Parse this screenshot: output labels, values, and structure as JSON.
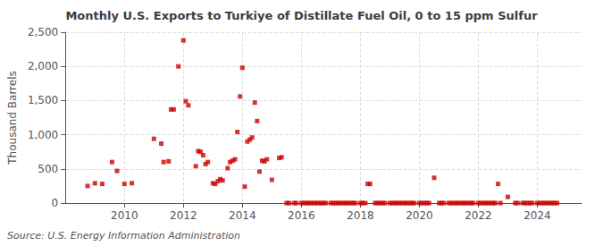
{
  "chart_data": {
    "type": "scatter",
    "title": "Monthly U.S. Exports to Turkiye of Distillate Fuel Oil, 0 to 15 ppm Sulfur",
    "ylabel": "Thousand Barrels",
    "source": "Source: U.S. Energy Information Administration",
    "color": "#cc0000",
    "marker": "square",
    "grid": true,
    "xlim": [
      2008.0,
      2025.5
    ],
    "xticks": [
      2010,
      2012,
      2014,
      2016,
      2018,
      2020,
      2022,
      2024
    ],
    "ylim": [
      0,
      2500
    ],
    "yticks": [
      0,
      500,
      {
        "value": 1000,
        "label": "1,000"
      },
      {
        "value": 1500,
        "label": "1,500"
      },
      {
        "value": 2000,
        "label": "2,000"
      },
      {
        "value": 2500,
        "label": "2,500"
      }
    ],
    "x": [
      2008.75,
      2009.0,
      2009.25,
      2009.58,
      2009.75,
      2010.0,
      2010.25,
      2011.0,
      2011.25,
      2011.33,
      2011.5,
      2011.58,
      2011.67,
      2011.83,
      2012.0,
      2012.08,
      2012.17,
      2012.42,
      2012.5,
      2012.58,
      2012.67,
      2012.75,
      2012.83,
      2013.0,
      2013.08,
      2013.17,
      2013.25,
      2013.33,
      2013.5,
      2013.58,
      2013.67,
      2013.75,
      2013.83,
      2013.92,
      2014.0,
      2014.08,
      2014.17,
      2014.25,
      2014.33,
      2014.42,
      2014.5,
      2014.58,
      2014.67,
      2014.75,
      2014.83,
      2015.0,
      2015.25,
      2015.33,
      2015.5,
      2015.58,
      2015.75,
      2015.83,
      2016.0,
      2016.08,
      2016.17,
      2016.25,
      2016.33,
      2016.42,
      2016.5,
      2016.58,
      2016.67,
      2016.75,
      2016.83,
      2017.0,
      2017.08,
      2017.17,
      2017.25,
      2017.33,
      2017.42,
      2017.5,
      2017.58,
      2017.67,
      2017.75,
      2017.83,
      2018.0,
      2018.08,
      2018.17,
      2018.25,
      2018.33,
      2018.5,
      2018.58,
      2018.67,
      2018.75,
      2018.83,
      2019.0,
      2019.08,
      2019.17,
      2019.25,
      2019.33,
      2019.42,
      2019.5,
      2019.58,
      2019.67,
      2019.75,
      2019.83,
      2020.0,
      2020.08,
      2020.17,
      2020.25,
      2020.33,
      2020.5,
      2020.67,
      2020.75,
      2020.83,
      2021.0,
      2021.08,
      2021.17,
      2021.25,
      2021.33,
      2021.42,
      2021.5,
      2021.58,
      2021.67,
      2021.75,
      2021.83,
      2022.0,
      2022.08,
      2022.17,
      2022.25,
      2022.33,
      2022.42,
      2022.5,
      2022.58,
      2022.67,
      2022.75,
      2023.0,
      2023.25,
      2023.33,
      2023.5,
      2023.58,
      2023.67,
      2023.75,
      2023.83,
      2024.0,
      2024.08,
      2024.17,
      2024.25,
      2024.33,
      2024.42,
      2024.5,
      2024.58,
      2024.67
    ],
    "values": [
      250,
      290,
      280,
      600,
      470,
      280,
      290,
      940,
      870,
      600,
      610,
      1370,
      1370,
      2000,
      2380,
      1490,
      1430,
      540,
      760,
      750,
      700,
      570,
      600,
      290,
      280,
      320,
      350,
      330,
      510,
      600,
      620,
      640,
      1040,
      1560,
      1980,
      240,
      900,
      930,
      960,
      1470,
      1200,
      460,
      620,
      610,
      640,
      340,
      660,
      670,
      0,
      0,
      0,
      0,
      0,
      0,
      0,
      0,
      0,
      0,
      0,
      0,
      0,
      0,
      0,
      0,
      0,
      0,
      0,
      0,
      0,
      0,
      0,
      0,
      0,
      0,
      0,
      0,
      0,
      280,
      280,
      0,
      0,
      0,
      0,
      0,
      0,
      0,
      0,
      0,
      0,
      0,
      0,
      0,
      0,
      0,
      0,
      0,
      0,
      0,
      0,
      0,
      370,
      0,
      0,
      0,
      0,
      0,
      0,
      0,
      0,
      0,
      0,
      0,
      0,
      0,
      0,
      0,
      0,
      0,
      0,
      0,
      0,
      0,
      0,
      280,
      0,
      90,
      0,
      0,
      0,
      0,
      0,
      0,
      0,
      0,
      0,
      0,
      0,
      0,
      0,
      0,
      0,
      0
    ]
  }
}
